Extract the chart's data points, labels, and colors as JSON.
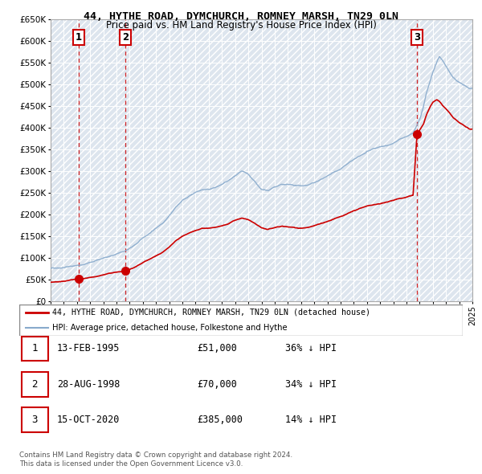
{
  "title": "44, HYTHE ROAD, DYMCHURCH, ROMNEY MARSH, TN29 0LN",
  "subtitle": "Price paid vs. HM Land Registry's House Price Index (HPI)",
  "legend_line1": "44, HYTHE ROAD, DYMCHURCH, ROMNEY MARSH, TN29 0LN (detached house)",
  "legend_line2": "HPI: Average price, detached house, Folkestone and Hythe",
  "transactions": [
    {
      "num": 1,
      "date_yr": 1995.12,
      "price": 51000
    },
    {
      "num": 2,
      "date_yr": 1998.65,
      "price": 70000
    },
    {
      "num": 3,
      "date_yr": 2020.79,
      "price": 385000
    }
  ],
  "transaction_labels": [
    "1",
    "2",
    "3"
  ],
  "transaction_dates_display": [
    "13-FEB-1995",
    "28-AUG-1998",
    "15-OCT-2020"
  ],
  "transaction_prices_display": [
    "£51,000",
    "£70,000",
    "£385,000"
  ],
  "transaction_pcts_display": [
    "36% ↓ HPI",
    "34% ↓ HPI",
    "14% ↓ HPI"
  ],
  "price_color": "#cc0000",
  "hpi_color": "#88aacc",
  "dashed_color": "#cc0000",
  "ylim": [
    0,
    650000
  ],
  "yticks": [
    0,
    50000,
    100000,
    150000,
    200000,
    250000,
    300000,
    350000,
    400000,
    450000,
    500000,
    550000,
    600000,
    650000
  ],
  "xmin": 1993,
  "xmax": 2025,
  "footer_line1": "Contains HM Land Registry data © Crown copyright and database right 2024.",
  "footer_line2": "This data is licensed under the Open Government Licence v3.0.",
  "hpi_keypoints": [
    [
      1993.0,
      75000
    ],
    [
      1993.5,
      77000
    ],
    [
      1994.0,
      79000
    ],
    [
      1994.5,
      82000
    ],
    [
      1995.0,
      84000
    ],
    [
      1995.5,
      86000
    ],
    [
      1996.0,
      90000
    ],
    [
      1996.5,
      94000
    ],
    [
      1997.0,
      99000
    ],
    [
      1997.5,
      104000
    ],
    [
      1998.0,
      108000
    ],
    [
      1998.5,
      113000
    ],
    [
      1999.0,
      120000
    ],
    [
      1999.5,
      130000
    ],
    [
      2000.0,
      143000
    ],
    [
      2000.5,
      155000
    ],
    [
      2001.0,
      167000
    ],
    [
      2001.5,
      180000
    ],
    [
      2002.0,
      198000
    ],
    [
      2002.5,
      218000
    ],
    [
      2003.0,
      232000
    ],
    [
      2003.5,
      242000
    ],
    [
      2004.0,
      252000
    ],
    [
      2004.5,
      258000
    ],
    [
      2005.0,
      260000
    ],
    [
      2005.5,
      263000
    ],
    [
      2006.0,
      270000
    ],
    [
      2006.5,
      278000
    ],
    [
      2007.0,
      288000
    ],
    [
      2007.5,
      296000
    ],
    [
      2008.0,
      288000
    ],
    [
      2008.5,
      270000
    ],
    [
      2009.0,
      253000
    ],
    [
      2009.5,
      248000
    ],
    [
      2010.0,
      256000
    ],
    [
      2010.5,
      262000
    ],
    [
      2011.0,
      260000
    ],
    [
      2011.5,
      257000
    ],
    [
      2012.0,
      256000
    ],
    [
      2012.5,
      258000
    ],
    [
      2013.0,
      263000
    ],
    [
      2013.5,
      270000
    ],
    [
      2014.0,
      278000
    ],
    [
      2014.5,
      287000
    ],
    [
      2015.0,
      296000
    ],
    [
      2015.5,
      306000
    ],
    [
      2016.0,
      315000
    ],
    [
      2016.5,
      322000
    ],
    [
      2017.0,
      330000
    ],
    [
      2017.5,
      336000
    ],
    [
      2018.0,
      341000
    ],
    [
      2018.5,
      345000
    ],
    [
      2019.0,
      350000
    ],
    [
      2019.5,
      358000
    ],
    [
      2020.0,
      363000
    ],
    [
      2020.5,
      370000
    ],
    [
      2021.0,
      400000
    ],
    [
      2021.3,
      430000
    ],
    [
      2021.5,
      460000
    ],
    [
      2021.8,
      490000
    ],
    [
      2022.0,
      510000
    ],
    [
      2022.3,
      535000
    ],
    [
      2022.5,
      548000
    ],
    [
      2022.7,
      540000
    ],
    [
      2023.0,
      525000
    ],
    [
      2023.3,
      510000
    ],
    [
      2023.5,
      500000
    ],
    [
      2023.8,
      492000
    ],
    [
      2024.0,
      488000
    ],
    [
      2024.3,
      482000
    ],
    [
      2024.5,
      478000
    ],
    [
      2024.8,
      472000
    ]
  ],
  "red_keypoints": [
    [
      1993.0,
      43000
    ],
    [
      1993.5,
      44500
    ],
    [
      1994.0,
      46000
    ],
    [
      1994.5,
      48500
    ],
    [
      1995.0,
      50000
    ],
    [
      1995.12,
      51000
    ],
    [
      1995.5,
      52000
    ],
    [
      1996.0,
      55000
    ],
    [
      1996.5,
      57500
    ],
    [
      1997.0,
      61000
    ],
    [
      1997.5,
      65000
    ],
    [
      1998.0,
      67500
    ],
    [
      1998.65,
      70000
    ],
    [
      1999.0,
      75000
    ],
    [
      1999.5,
      82000
    ],
    [
      2000.0,
      92000
    ],
    [
      2000.5,
      100000
    ],
    [
      2001.0,
      108000
    ],
    [
      2001.5,
      117000
    ],
    [
      2002.0,
      130000
    ],
    [
      2002.5,
      143000
    ],
    [
      2003.0,
      153000
    ],
    [
      2003.5,
      160000
    ],
    [
      2004.0,
      167000
    ],
    [
      2004.5,
      172000
    ],
    [
      2005.0,
      173000
    ],
    [
      2005.5,
      175000
    ],
    [
      2006.0,
      179000
    ],
    [
      2006.5,
      184000
    ],
    [
      2007.0,
      192000
    ],
    [
      2007.5,
      197000
    ],
    [
      2008.0,
      193000
    ],
    [
      2008.5,
      183000
    ],
    [
      2009.0,
      172000
    ],
    [
      2009.5,
      168000
    ],
    [
      2010.0,
      173000
    ],
    [
      2010.5,
      177000
    ],
    [
      2011.0,
      175000
    ],
    [
      2011.5,
      173000
    ],
    [
      2012.0,
      172000
    ],
    [
      2012.5,
      174000
    ],
    [
      2013.0,
      177000
    ],
    [
      2013.5,
      182000
    ],
    [
      2014.0,
      187000
    ],
    [
      2014.5,
      193000
    ],
    [
      2015.0,
      199000
    ],
    [
      2015.5,
      206000
    ],
    [
      2016.0,
      212000
    ],
    [
      2016.5,
      217000
    ],
    [
      2017.0,
      222000
    ],
    [
      2017.5,
      226000
    ],
    [
      2018.0,
      229000
    ],
    [
      2018.5,
      232000
    ],
    [
      2019.0,
      236000
    ],
    [
      2019.5,
      241000
    ],
    [
      2020.0,
      244000
    ],
    [
      2020.5,
      249000
    ],
    [
      2020.79,
      385000
    ],
    [
      2021.0,
      400000
    ],
    [
      2021.3,
      415000
    ],
    [
      2021.5,
      435000
    ],
    [
      2021.8,
      455000
    ],
    [
      2022.0,
      465000
    ],
    [
      2022.3,
      472000
    ],
    [
      2022.5,
      468000
    ],
    [
      2022.7,
      460000
    ],
    [
      2023.0,
      450000
    ],
    [
      2023.3,
      440000
    ],
    [
      2023.5,
      432000
    ],
    [
      2023.8,
      425000
    ],
    [
      2024.0,
      420000
    ],
    [
      2024.3,
      415000
    ],
    [
      2024.5,
      410000
    ],
    [
      2024.8,
      405000
    ]
  ]
}
